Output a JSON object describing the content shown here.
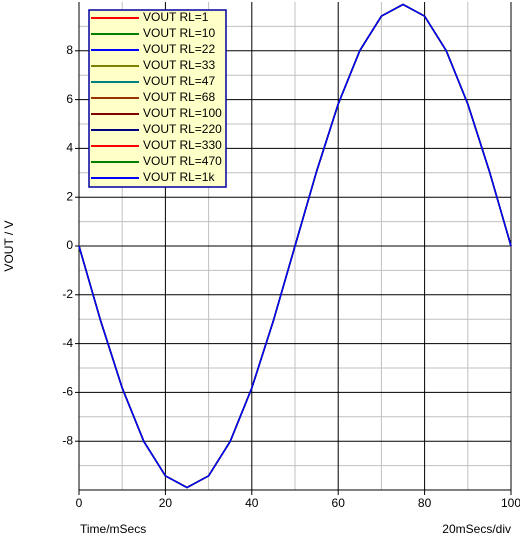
{
  "chart_data": {
    "type": "line",
    "y_label": "VOUT / V",
    "x_label": "Time/mSecs",
    "annotation": "20mSecs/div",
    "x": [
      0,
      5,
      10,
      15,
      20,
      25,
      30,
      35,
      40,
      45,
      50,
      55,
      60,
      65,
      70,
      75,
      80,
      85,
      90,
      95,
      100
    ],
    "series": [
      {
        "name": "VOUT RL=1",
        "color": "#ff0000",
        "values": [
          0,
          -3.06,
          -5.82,
          -8.01,
          -9.42,
          -9.9,
          -9.42,
          -8.01,
          -5.82,
          -3.06,
          0,
          3.06,
          5.82,
          8.01,
          9.42,
          9.9,
          9.42,
          8.01,
          5.82,
          3.06,
          0
        ]
      },
      {
        "name": "VOUT RL=10",
        "color": "#008000",
        "values": [
          0,
          -3.06,
          -5.82,
          -8.01,
          -9.42,
          -9.9,
          -9.42,
          -8.01,
          -5.82,
          -3.06,
          0,
          3.06,
          5.82,
          8.01,
          9.42,
          9.9,
          9.42,
          8.01,
          5.82,
          3.06,
          0
        ]
      },
      {
        "name": "VOUT RL=22",
        "color": "#0000ff",
        "values": [
          0,
          -3.06,
          -5.82,
          -8.01,
          -9.42,
          -9.9,
          -9.42,
          -8.01,
          -5.82,
          -3.06,
          0,
          3.06,
          5.82,
          8.01,
          9.42,
          9.9,
          9.42,
          8.01,
          5.82,
          3.06,
          0
        ]
      },
      {
        "name": "VOUT RL=33",
        "color": "#808000",
        "values": [
          0,
          -3.06,
          -5.82,
          -8.01,
          -9.42,
          -9.9,
          -9.42,
          -8.01,
          -5.82,
          -3.06,
          0,
          3.06,
          5.82,
          8.01,
          9.42,
          9.9,
          9.42,
          8.01,
          5.82,
          3.06,
          0
        ]
      },
      {
        "name": "VOUT RL=47",
        "color": "#008080",
        "values": [
          0,
          -3.06,
          -5.82,
          -8.01,
          -9.42,
          -9.9,
          -9.42,
          -8.01,
          -5.82,
          -3.06,
          0,
          3.06,
          5.82,
          8.01,
          9.42,
          9.9,
          9.42,
          8.01,
          5.82,
          3.06,
          0
        ]
      },
      {
        "name": "VOUT RL=68",
        "color": "#993300",
        "values": [
          0,
          -3.06,
          -5.82,
          -8.01,
          -9.42,
          -9.9,
          -9.42,
          -8.01,
          -5.82,
          -3.06,
          0,
          3.06,
          5.82,
          8.01,
          9.42,
          9.9,
          9.42,
          8.01,
          5.82,
          3.06,
          0
        ]
      },
      {
        "name": "VOUT RL=100",
        "color": "#800000",
        "values": [
          0,
          -3.06,
          -5.82,
          -8.01,
          -9.42,
          -9.9,
          -9.42,
          -8.01,
          -5.82,
          -3.06,
          0,
          3.06,
          5.82,
          8.01,
          9.42,
          9.9,
          9.42,
          8.01,
          5.82,
          3.06,
          0
        ]
      },
      {
        "name": "VOUT RL=220",
        "color": "#000080",
        "values": [
          0,
          -3.06,
          -5.82,
          -8.01,
          -9.42,
          -9.9,
          -9.42,
          -8.01,
          -5.82,
          -3.06,
          0,
          3.06,
          5.82,
          8.01,
          9.42,
          9.9,
          9.42,
          8.01,
          5.82,
          3.06,
          0
        ]
      },
      {
        "name": "VOUT RL=330",
        "color": "#ff0000",
        "values": [
          0,
          -3.06,
          -5.82,
          -8.01,
          -9.42,
          -9.9,
          -9.42,
          -8.01,
          -5.82,
          -3.06,
          0,
          3.06,
          5.82,
          8.01,
          9.42,
          9.9,
          9.42,
          8.01,
          5.82,
          3.06,
          0
        ]
      },
      {
        "name": "VOUT RL=470",
        "color": "#008000",
        "values": [
          0,
          -3.06,
          -5.82,
          -8.01,
          -9.42,
          -9.9,
          -9.42,
          -8.01,
          -5.82,
          -3.06,
          0,
          3.06,
          5.82,
          8.01,
          9.42,
          9.9,
          9.42,
          8.01,
          5.82,
          3.06,
          0
        ]
      },
      {
        "name": "VOUT RL=1k",
        "color": "#0000ff",
        "values": [
          0,
          -3.06,
          -5.82,
          -8.01,
          -9.42,
          -9.9,
          -9.42,
          -8.01,
          -5.82,
          -3.06,
          0,
          3.06,
          5.82,
          8.01,
          9.42,
          9.9,
          9.42,
          8.01,
          5.82,
          3.06,
          0
        ]
      }
    ],
    "xlim": [
      0,
      100
    ],
    "xticks": [
      0,
      20,
      40,
      60,
      80,
      100
    ],
    "ylim": [
      -10,
      10
    ],
    "yticks": [
      -8,
      -6,
      -4,
      -2,
      0,
      2,
      4,
      6,
      8
    ],
    "grid": true,
    "legend": "upper left"
  }
}
